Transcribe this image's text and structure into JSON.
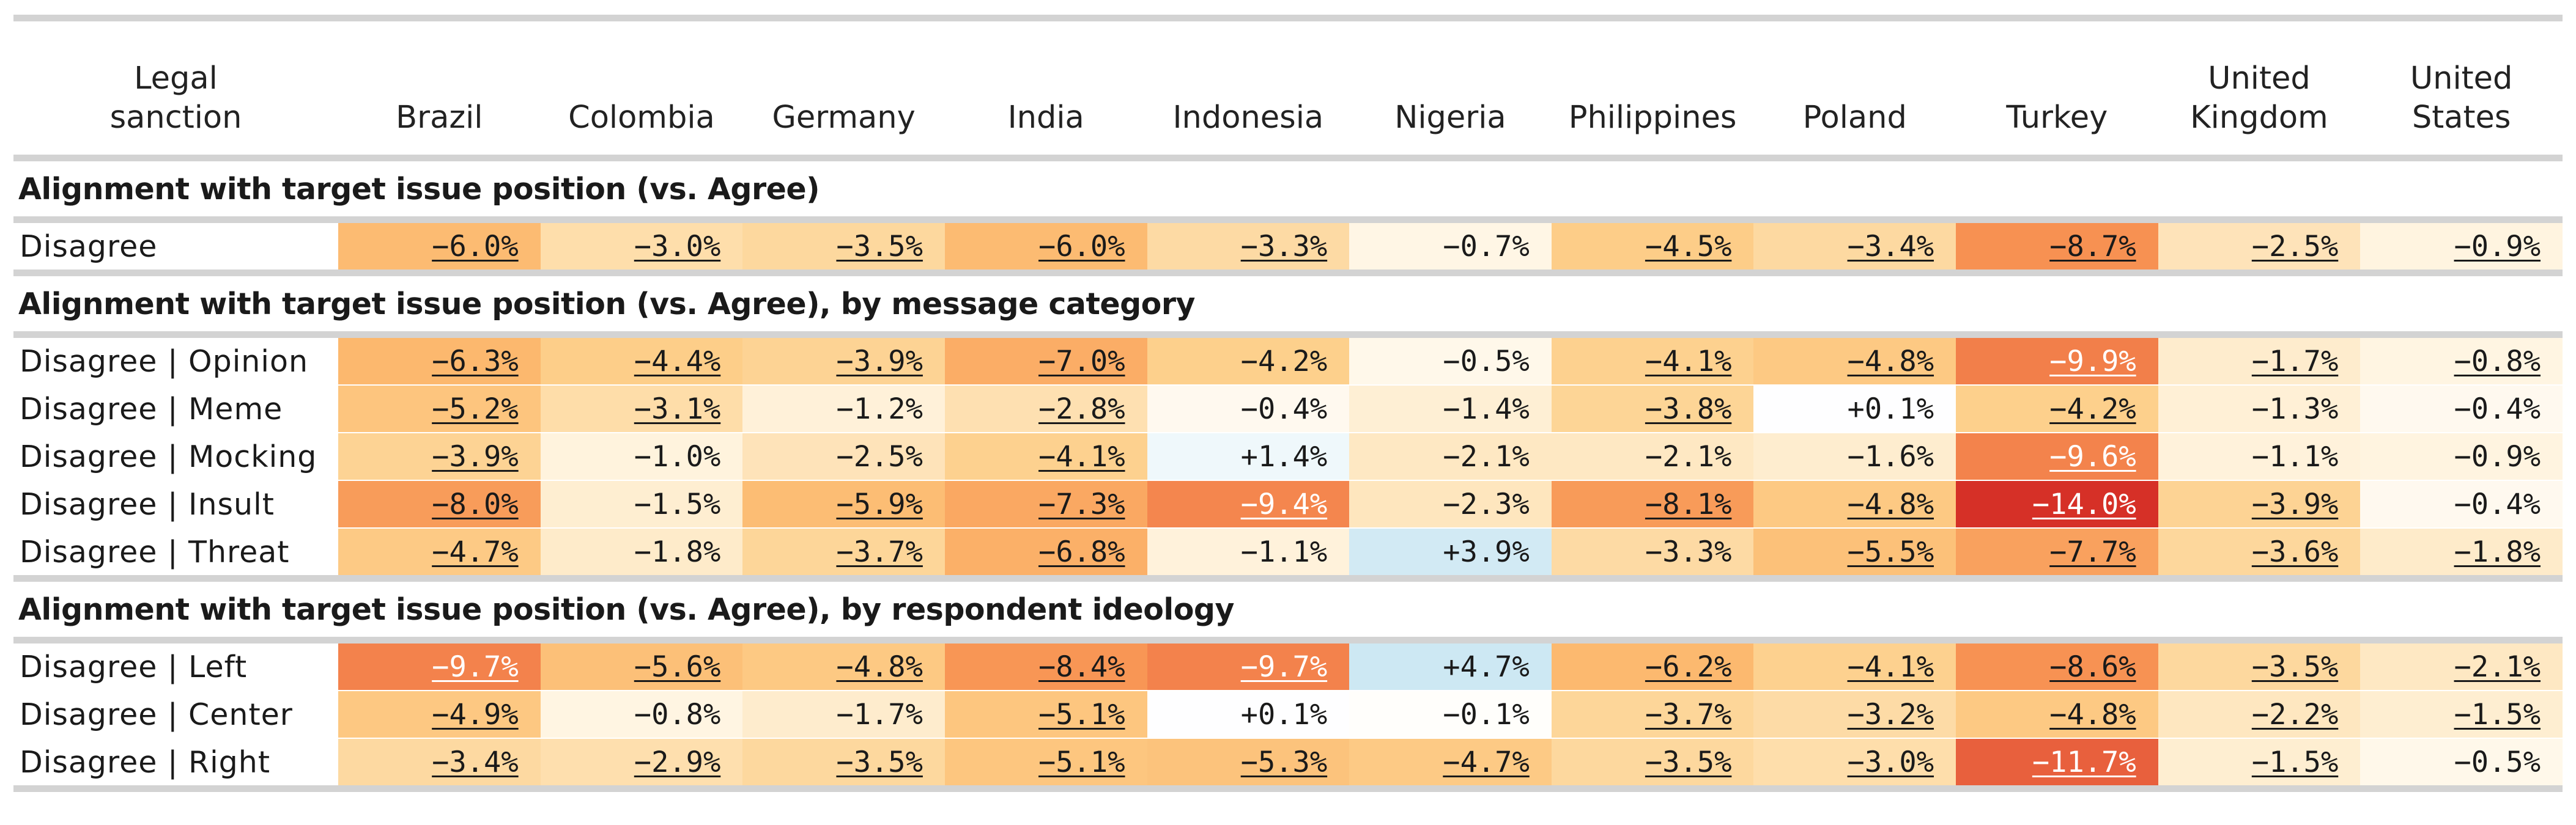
{
  "chart_data": {
    "type": "heatmap",
    "corner_label": "Legal sanction",
    "columns": [
      "Brazil",
      "Colombia",
      "Germany",
      "India",
      "Indonesia",
      "Nigeria",
      "Philippines",
      "Poland",
      "Turkey",
      "United Kingdom",
      "United States"
    ],
    "value_format": "percent-change",
    "colorscale": {
      "negative": "orange-red (deeper = more negative)",
      "positive": "light blue",
      "zero": "#ffffff"
    },
    "underline_meaning": "underlined cells (as shown)",
    "sections": [
      {
        "title": "Alignment with target issue position (vs. Agree)",
        "rows": [
          {
            "label": "Disagree",
            "values": [
              -6.0,
              -3.0,
              -3.5,
              -6.0,
              -3.3,
              -0.7,
              -4.5,
              -3.4,
              -8.7,
              -2.5,
              -0.9
            ],
            "display": [
              "−6.0%",
              "−3.0%",
              "−3.5%",
              "−6.0%",
              "−3.3%",
              "−0.7%",
              "−4.5%",
              "−3.4%",
              "−8.7%",
              "−2.5%",
              "−0.9%"
            ],
            "underlined": [
              true,
              true,
              true,
              true,
              true,
              false,
              true,
              true,
              true,
              true,
              true
            ]
          }
        ]
      },
      {
        "title": "Alignment with target issue position (vs. Agree), by message category",
        "rows": [
          {
            "label": "Disagree | Opinion",
            "values": [
              -6.3,
              -4.4,
              -3.9,
              -7.0,
              -4.2,
              -0.5,
              -4.1,
              -4.8,
              -9.9,
              -1.7,
              -0.8
            ],
            "display": [
              "−6.3%",
              "−4.4%",
              "−3.9%",
              "−7.0%",
              "−4.2%",
              "−0.5%",
              "−4.1%",
              "−4.8%",
              "−9.9%",
              "−1.7%",
              "−0.8%"
            ],
            "underlined": [
              true,
              true,
              true,
              true,
              false,
              false,
              true,
              true,
              true,
              true,
              true
            ]
          },
          {
            "label": "Disagree | Meme",
            "values": [
              -5.2,
              -3.1,
              -1.2,
              -2.8,
              -0.4,
              -1.4,
              -3.8,
              0.1,
              -4.2,
              -1.3,
              -0.4
            ],
            "display": [
              "−5.2%",
              "−3.1%",
              "−1.2%",
              "−2.8%",
              "−0.4%",
              "−1.4%",
              "−3.8%",
              "+0.1%",
              "−4.2%",
              "−1.3%",
              "−0.4%"
            ],
            "underlined": [
              true,
              true,
              false,
              true,
              false,
              false,
              true,
              false,
              true,
              false,
              false
            ]
          },
          {
            "label": "Disagree | Mocking",
            "values": [
              -3.9,
              -1.0,
              -2.5,
              -4.1,
              1.4,
              -2.1,
              -2.1,
              -1.6,
              -9.6,
              -1.1,
              -0.9
            ],
            "display": [
              "−3.9%",
              "−1.0%",
              "−2.5%",
              "−4.1%",
              "+1.4%",
              "−2.1%",
              "−2.1%",
              "−1.6%",
              "−9.6%",
              "−1.1%",
              "−0.9%"
            ],
            "underlined": [
              true,
              false,
              false,
              true,
              false,
              false,
              false,
              false,
              true,
              false,
              false
            ]
          },
          {
            "label": "Disagree | Insult",
            "values": [
              -8.0,
              -1.5,
              -5.9,
              -7.3,
              -9.4,
              -2.3,
              -8.1,
              -4.8,
              -14.0,
              -3.9,
              -0.4
            ],
            "display": [
              "−8.0%",
              "−1.5%",
              "−5.9%",
              "−7.3%",
              "−9.4%",
              "−2.3%",
              "−8.1%",
              "−4.8%",
              "−14.0%",
              "−3.9%",
              "−0.4%"
            ],
            "underlined": [
              true,
              false,
              true,
              true,
              true,
              false,
              true,
              true,
              true,
              true,
              false
            ]
          },
          {
            "label": "Disagree | Threat",
            "values": [
              -4.7,
              -1.8,
              -3.7,
              -6.8,
              -1.1,
              3.9,
              -3.3,
              -5.5,
              -7.7,
              -3.6,
              -1.8
            ],
            "display": [
              "−4.7%",
              "−1.8%",
              "−3.7%",
              "−6.8%",
              "−1.1%",
              "+3.9%",
              "−3.3%",
              "−5.5%",
              "−7.7%",
              "−3.6%",
              "−1.8%"
            ],
            "underlined": [
              true,
              false,
              true,
              true,
              false,
              false,
              false,
              true,
              true,
              true,
              true
            ]
          }
        ]
      },
      {
        "title": "Alignment with target issue position (vs. Agree), by respondent ideology",
        "rows": [
          {
            "label": "Disagree | Left",
            "values": [
              -9.7,
              -5.6,
              -4.8,
              -8.4,
              -9.7,
              4.7,
              -6.2,
              -4.1,
              -8.6,
              -3.5,
              -2.1
            ],
            "display": [
              "−9.7%",
              "−5.6%",
              "−4.8%",
              "−8.4%",
              "−9.7%",
              "+4.7%",
              "−6.2%",
              "−4.1%",
              "−8.6%",
              "−3.5%",
              "−2.1%"
            ],
            "underlined": [
              true,
              true,
              true,
              true,
              true,
              false,
              true,
              true,
              true,
              true,
              true
            ]
          },
          {
            "label": "Disagree | Center",
            "values": [
              -4.9,
              -0.8,
              -1.7,
              -5.1,
              0.1,
              -0.1,
              -3.7,
              -3.2,
              -4.8,
              -2.2,
              -1.5
            ],
            "display": [
              "−4.9%",
              "−0.8%",
              "−1.7%",
              "−5.1%",
              "+0.1%",
              "−0.1%",
              "−3.7%",
              "−3.2%",
              "−4.8%",
              "−2.2%",
              "−1.5%"
            ],
            "underlined": [
              true,
              false,
              false,
              true,
              false,
              false,
              true,
              true,
              true,
              true,
              true
            ]
          },
          {
            "label": "Disagree | Right",
            "values": [
              -3.4,
              -2.9,
              -3.5,
              -5.1,
              -5.3,
              -4.7,
              -3.5,
              -3.0,
              -11.7,
              -1.5,
              -0.5
            ],
            "display": [
              "−3.4%",
              "−2.9%",
              "−3.5%",
              "−5.1%",
              "−5.3%",
              "−4.7%",
              "−3.5%",
              "−3.0%",
              "−11.7%",
              "−1.5%",
              "−0.5%"
            ],
            "underlined": [
              true,
              true,
              true,
              true,
              true,
              true,
              true,
              true,
              true,
              true,
              false
            ]
          }
        ]
      }
    ]
  }
}
